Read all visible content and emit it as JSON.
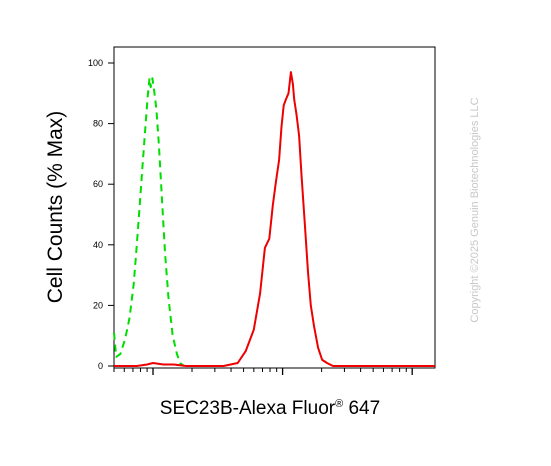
{
  "chart_data": {
    "type": "line",
    "title": "",
    "xlabel": "SEC23B-Alexa Fluor",
    "xlabel_superscript": "®",
    "xlabel_suffix": " 647",
    "ylabel": "Cell Counts (% Max)",
    "ylim": [
      0,
      100
    ],
    "yticks": [
      0,
      20,
      40,
      60,
      80,
      100
    ],
    "x_scale": "log",
    "xlim": [
      0.5,
      150
    ],
    "grid": false,
    "legend": "none",
    "series": [
      {
        "color": "#00dd00",
        "dash": "dashed",
        "x": [
          0.5,
          0.52,
          0.56,
          0.61,
          0.66,
          0.71,
          0.75,
          0.79,
          0.83,
          0.87,
          0.91,
          0.94,
          0.96,
          0.99,
          1.02,
          1.06,
          1.11,
          1.17,
          1.24,
          1.32,
          1.42,
          1.53,
          1.62,
          1.73
        ],
        "y": [
          11,
          3,
          4,
          9,
          16,
          27,
          40,
          53,
          66,
          78,
          89,
          95,
          92,
          95,
          91,
          85,
          73,
          56,
          37,
          22,
          10,
          4,
          1,
          0
        ]
      },
      {
        "color": "#ee0000",
        "dash": "solid",
        "x": [
          0.5,
          0.6,
          0.75,
          0.9,
          1.0,
          1.2,
          1.45,
          1.8,
          2.5,
          3.5,
          4.5,
          5.2,
          6.0,
          6.7,
          7.3,
          7.9,
          8.4,
          8.9,
          9.4,
          9.8,
          10.2,
          10.6,
          11.1,
          11.6,
          12.0,
          12.3,
          12.8,
          13.4,
          14.0,
          14.9,
          15.7,
          16.5,
          17.5,
          18.8,
          20.2,
          22.0,
          24.5,
          28,
          33,
          45,
          60,
          100,
          150
        ],
        "y": [
          0,
          0,
          0,
          0.5,
          1,
          0.5,
          0.5,
          0,
          0,
          0,
          1,
          5,
          12,
          24,
          39,
          42,
          53,
          61,
          68,
          79,
          86,
          88,
          90,
          97,
          93,
          88,
          83,
          76,
          63,
          46,
          31,
          20,
          13,
          6,
          2,
          1,
          0,
          0,
          0,
          0,
          0,
          0,
          0
        ]
      }
    ]
  },
  "watermark": "Copyright ©2025 Genuin Biotechnologies LLC"
}
